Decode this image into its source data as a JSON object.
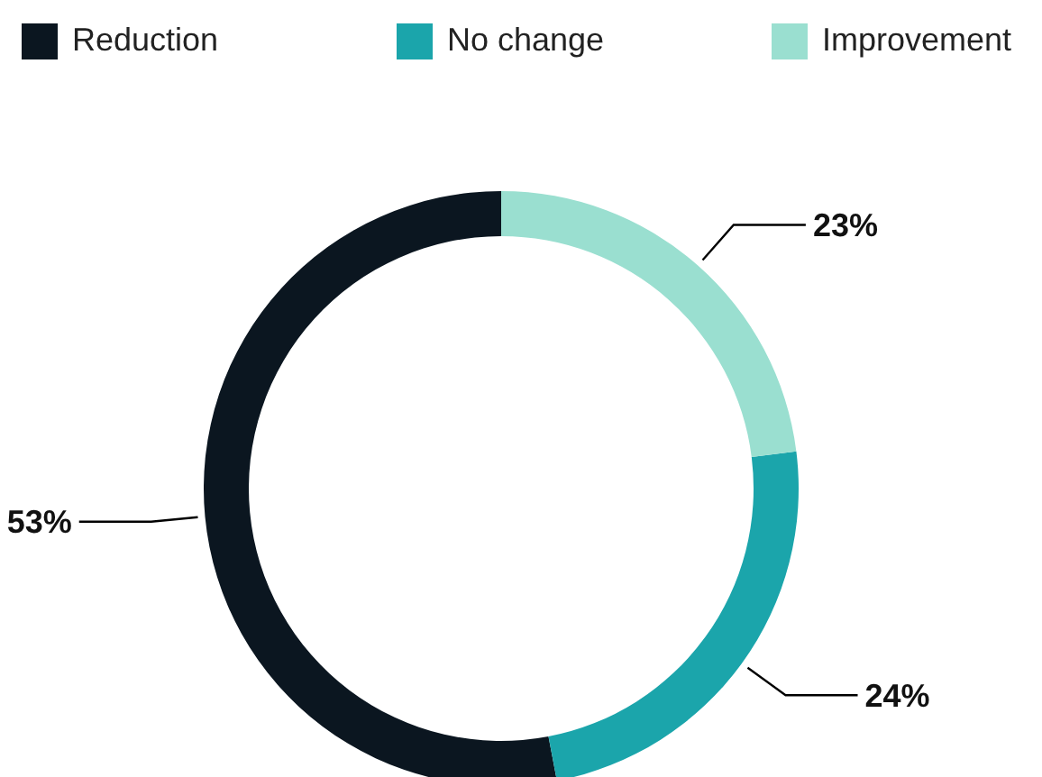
{
  "chart_data": {
    "type": "donut",
    "categories": [
      "Reduction",
      "No change",
      "Improvement"
    ],
    "values": [
      53,
      24,
      23
    ],
    "colors": [
      "#0b1620",
      "#1ba5ab",
      "#9adfd0"
    ],
    "value_labels": [
      "53%",
      "24%",
      "23%"
    ],
    "legend": "top"
  }
}
